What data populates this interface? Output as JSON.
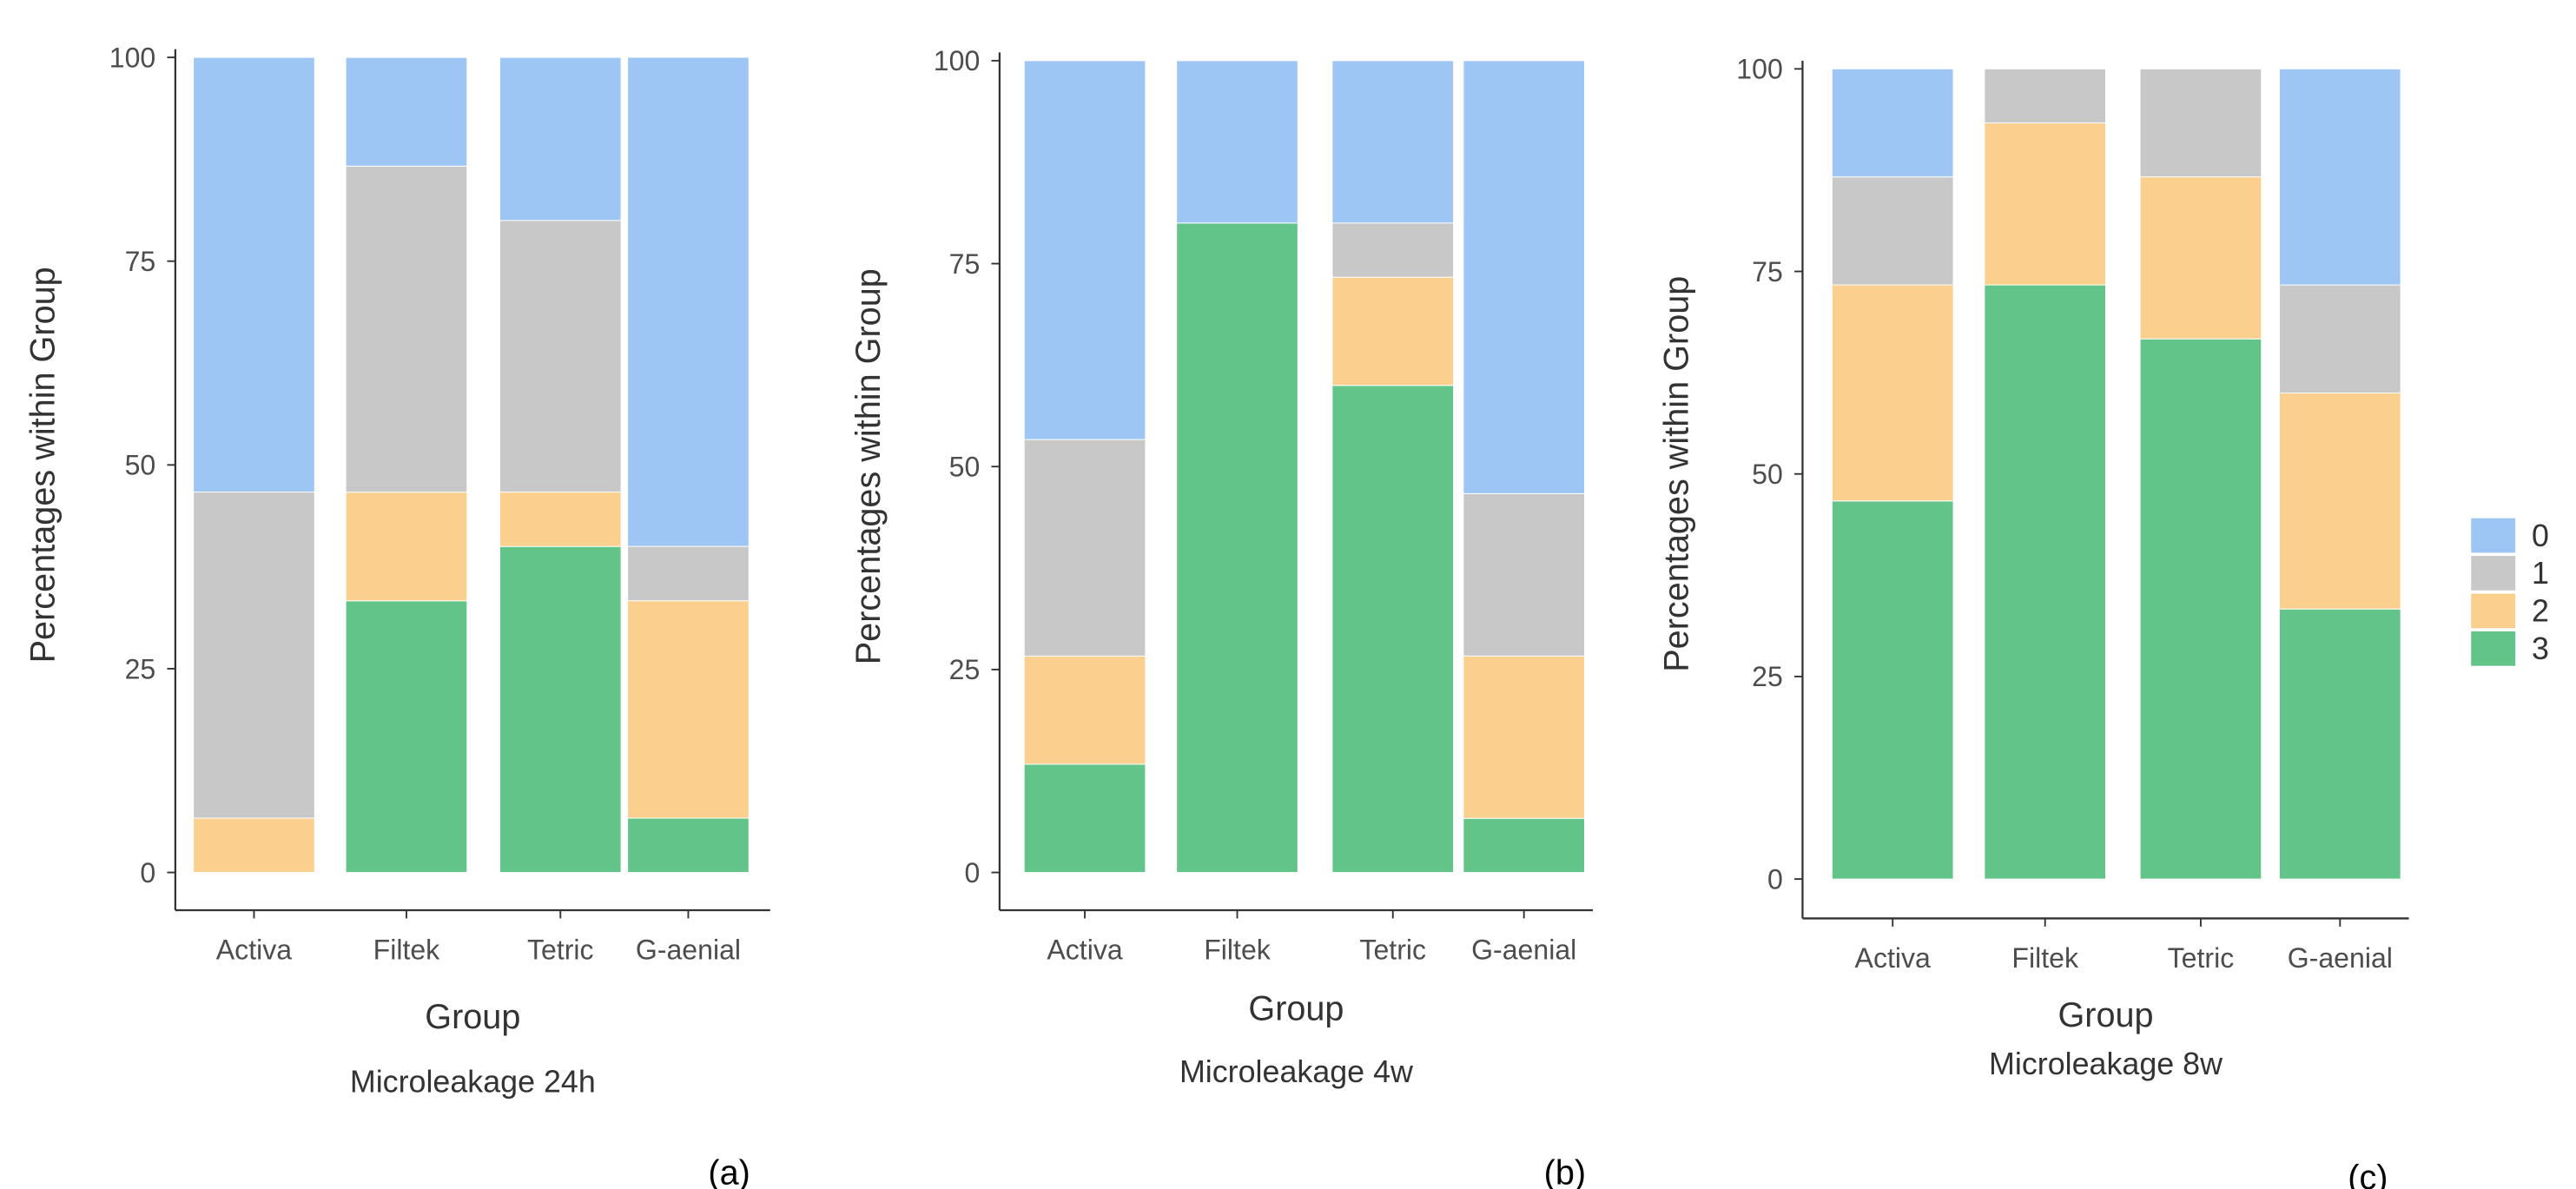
{
  "chart_data": [
    {
      "type": "bar",
      "stacked": true,
      "title": "Microleakage 24h",
      "panel_label": "(a)",
      "xlabel": "Group",
      "ylabel": "Percentages within Group",
      "ylim": [
        0,
        100
      ],
      "yticks": [
        "0",
        "25",
        "50",
        "75",
        "100"
      ],
      "categories": [
        "Activa",
        "Filtek",
        "Tetric",
        "G-aenial"
      ],
      "series": [
        {
          "name": "3",
          "values": [
            0,
            33.33,
            40,
            6.67
          ]
        },
        {
          "name": "2",
          "values": [
            6.67,
            13.33,
            6.67,
            26.67
          ]
        },
        {
          "name": "1",
          "values": [
            40,
            40,
            33.33,
            6.67
          ]
        },
        {
          "name": "0",
          "values": [
            53.33,
            13.33,
            20,
            60
          ]
        }
      ]
    },
    {
      "type": "bar",
      "stacked": true,
      "title": "Microleakage 4w",
      "panel_label": "(b)",
      "xlabel": "Group",
      "ylabel": "Percentages within Group",
      "ylim": [
        0,
        100
      ],
      "yticks": [
        "0",
        "25",
        "50",
        "75",
        "100"
      ],
      "categories": [
        "Activa",
        "Filtek",
        "Tetric",
        "G-aenial"
      ],
      "series": [
        {
          "name": "3",
          "values": [
            13.33,
            80,
            60,
            6.67
          ]
        },
        {
          "name": "2",
          "values": [
            13.33,
            0,
            13.33,
            20
          ]
        },
        {
          "name": "1",
          "values": [
            26.67,
            0,
            6.67,
            20
          ]
        },
        {
          "name": "0",
          "values": [
            46.67,
            20,
            20,
            53.33
          ]
        }
      ]
    },
    {
      "type": "bar",
      "stacked": true,
      "title": "Microleakage 8w",
      "panel_label": "(c)",
      "xlabel": "Group",
      "ylabel": "Percentages within Group",
      "ylim": [
        0,
        100
      ],
      "yticks": [
        "0",
        "25",
        "50",
        "75",
        "100"
      ],
      "categories": [
        "Activa",
        "Filtek",
        "Tetric",
        "G-aenial"
      ],
      "series": [
        {
          "name": "3",
          "values": [
            46.67,
            73.33,
            66.67,
            33.33
          ]
        },
        {
          "name": "2",
          "values": [
            26.67,
            20,
            20,
            26.67
          ]
        },
        {
          "name": "1",
          "values": [
            13.33,
            6.67,
            13.33,
            13.33
          ]
        },
        {
          "name": "0",
          "values": [
            13.33,
            0,
            0,
            26.67
          ]
        }
      ]
    }
  ],
  "legend": {
    "placement": "right",
    "entries": [
      "0",
      "1",
      "2",
      "3"
    ]
  },
  "colors": {
    "0": "#9dc6f5",
    "1": "#c8c8c8",
    "2": "#fbcf8e",
    "3": "#63c48a"
  }
}
